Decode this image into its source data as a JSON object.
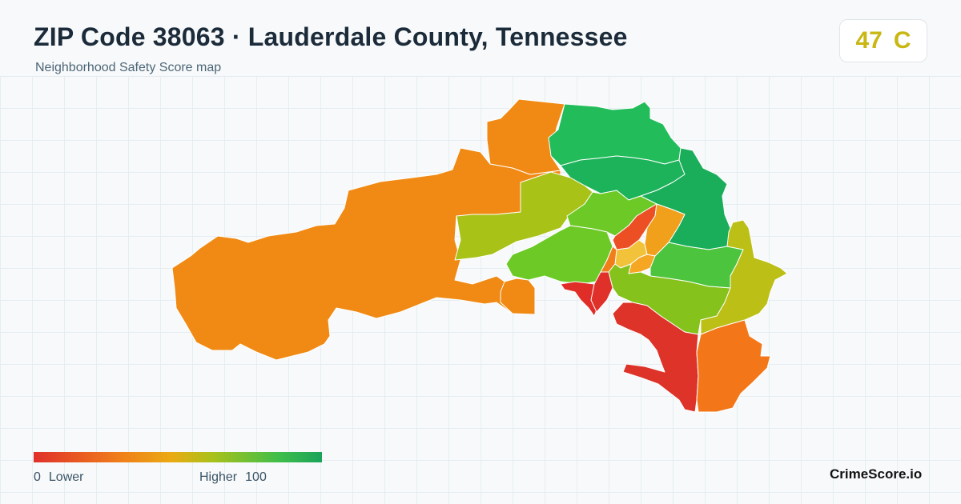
{
  "header": {
    "title": "ZIP Code 38063 · Lauderdale County, Tennessee",
    "subtitle": "Neighborhood Safety Score map"
  },
  "score": {
    "value": "47",
    "grade": "C",
    "color": "#c9b714"
  },
  "legend": {
    "min_value": "0",
    "min_label": "Lower",
    "max_label": "Higher",
    "max_value": "100",
    "colors": [
      "#e0302a",
      "#f07f1a",
      "#eaab12",
      "#a9c11a",
      "#3fbe4a",
      "#1aa35a"
    ]
  },
  "brand": "CrimeScore.io",
  "map": {
    "regions": [
      {
        "id": "west-large",
        "color": "#f08a14"
      },
      {
        "id": "north-strip",
        "color": "#f08a14"
      },
      {
        "id": "north-green",
        "color": "#22bd5a"
      },
      {
        "id": "north-central-green",
        "color": "#1db35a"
      },
      {
        "id": "northeast-green",
        "color": "#1aae5b"
      },
      {
        "id": "west-yellowgreen",
        "color": "#a8c218"
      },
      {
        "id": "central-green",
        "color": "#6dc926"
      },
      {
        "id": "central-west-green",
        "color": "#6dc926"
      },
      {
        "id": "town-red-orange",
        "color": "#ec4f24"
      },
      {
        "id": "town-orange",
        "color": "#f0a01a"
      },
      {
        "id": "town-small-1",
        "color": "#f2c23a"
      },
      {
        "id": "town-small-2",
        "color": "#f07f1a"
      },
      {
        "id": "town-small-3",
        "color": "#f5a623"
      },
      {
        "id": "east-green",
        "color": "#4cc43d"
      },
      {
        "id": "south-central",
        "color": "#86c21c"
      },
      {
        "id": "east-olive",
        "color": "#bcbf16"
      },
      {
        "id": "south-red-1",
        "color": "#e02d28"
      },
      {
        "id": "south-red-2",
        "color": "#dd3329"
      },
      {
        "id": "southeast-orange",
        "color": "#f37719"
      },
      {
        "id": "south-small-orange",
        "color": "#f08a14"
      },
      {
        "id": "center-red",
        "color": "#e0302a"
      }
    ]
  }
}
